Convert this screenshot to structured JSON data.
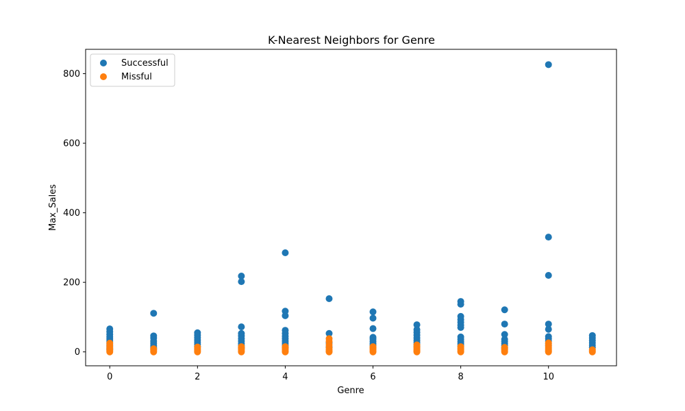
{
  "chart_data": {
    "type": "scatter",
    "title": "K-Nearest Neighbors for Genre",
    "xlabel": "Genre",
    "ylabel": "Max_Sales",
    "xlim": [
      -0.55,
      11.55
    ],
    "ylim": [
      -40,
      870
    ],
    "x_ticks": [
      0,
      2,
      4,
      6,
      8,
      10
    ],
    "y_ticks": [
      0,
      200,
      400,
      600,
      800
    ],
    "grid": false,
    "legend_position": "top-left",
    "series": [
      {
        "name": "Successful",
        "color": "#1f77b4",
        "points": [
          [
            0,
            66
          ],
          [
            0,
            58
          ],
          [
            0,
            50
          ],
          [
            0,
            43
          ],
          [
            0,
            37
          ],
          [
            0,
            31
          ],
          [
            0,
            26
          ],
          [
            0,
            21
          ],
          [
            0,
            16
          ],
          [
            0,
            11
          ],
          [
            0,
            6
          ],
          [
            1,
            111
          ],
          [
            1,
            46
          ],
          [
            1,
            40
          ],
          [
            1,
            31
          ],
          [
            1,
            25
          ],
          [
            1,
            19
          ],
          [
            1,
            14
          ],
          [
            1,
            9
          ],
          [
            2,
            55
          ],
          [
            2,
            48
          ],
          [
            2,
            41
          ],
          [
            2,
            34
          ],
          [
            2,
            28
          ],
          [
            2,
            22
          ],
          [
            2,
            16
          ],
          [
            3,
            218
          ],
          [
            3,
            202
          ],
          [
            3,
            72
          ],
          [
            3,
            53
          ],
          [
            3,
            46
          ],
          [
            3,
            38
          ],
          [
            3,
            31
          ],
          [
            3,
            24
          ],
          [
            3,
            18
          ],
          [
            3,
            12
          ],
          [
            4,
            285
          ],
          [
            4,
            117
          ],
          [
            4,
            104
          ],
          [
            4,
            62
          ],
          [
            4,
            53
          ],
          [
            4,
            45
          ],
          [
            4,
            38
          ],
          [
            4,
            31
          ],
          [
            4,
            25
          ],
          [
            4,
            19
          ],
          [
            4,
            13
          ],
          [
            5,
            153
          ],
          [
            5,
            53
          ],
          [
            5,
            26
          ],
          [
            5,
            14
          ],
          [
            6,
            115
          ],
          [
            6,
            97
          ],
          [
            6,
            67
          ],
          [
            6,
            42
          ],
          [
            6,
            37
          ],
          [
            6,
            30
          ],
          [
            6,
            24
          ],
          [
            6,
            19
          ],
          [
            6,
            13
          ],
          [
            7,
            78
          ],
          [
            7,
            64
          ],
          [
            7,
            56
          ],
          [
            7,
            48
          ],
          [
            7,
            40
          ],
          [
            7,
            33
          ],
          [
            7,
            27
          ],
          [
            7,
            21
          ],
          [
            7,
            15
          ],
          [
            8,
            145
          ],
          [
            8,
            137
          ],
          [
            8,
            102
          ],
          [
            8,
            93
          ],
          [
            8,
            85
          ],
          [
            8,
            77
          ],
          [
            8,
            70
          ],
          [
            8,
            43
          ],
          [
            8,
            36
          ],
          [
            8,
            29
          ],
          [
            8,
            23
          ],
          [
            8,
            17
          ],
          [
            9,
            121
          ],
          [
            9,
            80
          ],
          [
            9,
            50
          ],
          [
            9,
            36
          ],
          [
            9,
            30
          ],
          [
            9,
            24
          ],
          [
            9,
            18
          ],
          [
            9,
            12
          ],
          [
            10,
            826
          ],
          [
            10,
            330
          ],
          [
            10,
            220
          ],
          [
            10,
            80
          ],
          [
            10,
            65
          ],
          [
            10,
            44
          ],
          [
            10,
            38
          ],
          [
            10,
            31
          ],
          [
            10,
            24
          ],
          [
            10,
            18
          ],
          [
            11,
            47
          ],
          [
            11,
            40
          ],
          [
            11,
            33
          ],
          [
            11,
            26
          ],
          [
            11,
            19
          ],
          [
            11,
            13
          ]
        ]
      },
      {
        "name": "Missful",
        "color": "#ff7f0e",
        "points": [
          [
            0,
            25
          ],
          [
            0,
            18
          ],
          [
            0,
            12
          ],
          [
            0,
            7
          ],
          [
            0,
            3
          ],
          [
            0,
            0
          ],
          [
            1,
            9
          ],
          [
            1,
            6
          ],
          [
            1,
            3
          ],
          [
            1,
            0
          ],
          [
            2,
            14
          ],
          [
            2,
            10
          ],
          [
            2,
            6
          ],
          [
            2,
            3
          ],
          [
            2,
            0
          ],
          [
            3,
            15
          ],
          [
            3,
            11
          ],
          [
            3,
            7
          ],
          [
            3,
            3
          ],
          [
            3,
            0
          ],
          [
            4,
            15
          ],
          [
            4,
            11
          ],
          [
            4,
            7
          ],
          [
            4,
            3
          ],
          [
            4,
            0
          ],
          [
            5,
            38
          ],
          [
            5,
            30
          ],
          [
            5,
            20
          ],
          [
            5,
            12
          ],
          [
            5,
            6
          ],
          [
            5,
            2
          ],
          [
            5,
            0
          ],
          [
            6,
            15
          ],
          [
            6,
            11
          ],
          [
            6,
            7
          ],
          [
            6,
            3
          ],
          [
            6,
            0
          ],
          [
            7,
            20
          ],
          [
            7,
            14
          ],
          [
            7,
            9
          ],
          [
            7,
            5
          ],
          [
            7,
            2
          ],
          [
            7,
            0
          ],
          [
            8,
            15
          ],
          [
            8,
            11
          ],
          [
            8,
            7
          ],
          [
            8,
            3
          ],
          [
            8,
            0
          ],
          [
            9,
            13
          ],
          [
            9,
            9
          ],
          [
            9,
            6
          ],
          [
            9,
            3
          ],
          [
            9,
            0
          ],
          [
            10,
            26
          ],
          [
            10,
            20
          ],
          [
            10,
            14
          ],
          [
            10,
            9
          ],
          [
            10,
            5
          ],
          [
            10,
            2
          ],
          [
            10,
            0
          ],
          [
            11,
            6
          ],
          [
            11,
            3
          ],
          [
            11,
            0
          ]
        ]
      }
    ]
  }
}
